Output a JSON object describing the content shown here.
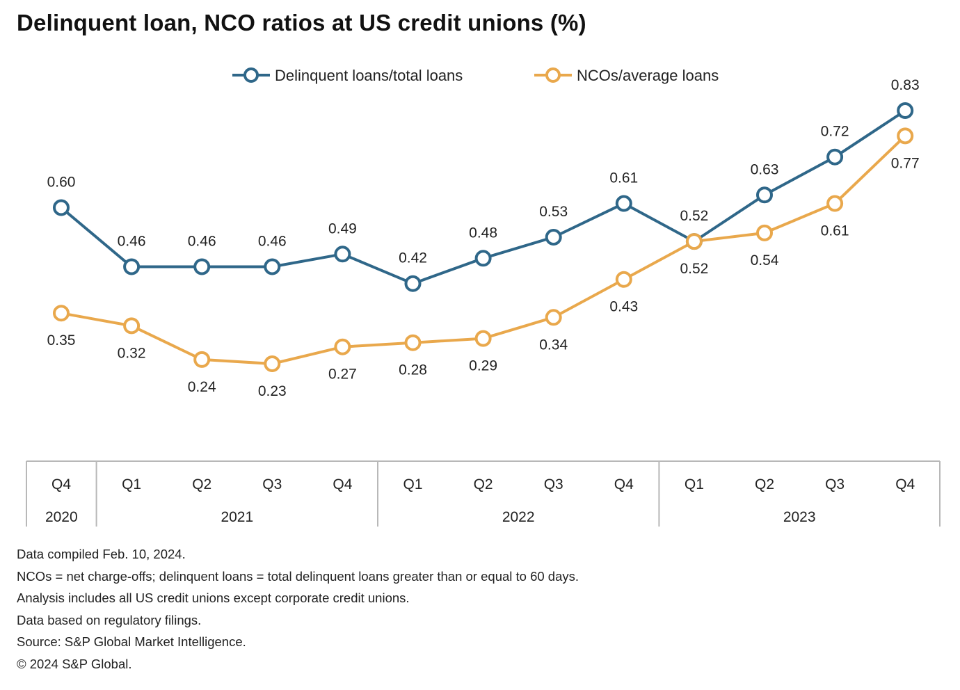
{
  "title": "Delinquent loan, NCO ratios at US credit unions (%)",
  "colors": {
    "delinquent": "#2f6789",
    "nco": "#e9a84c",
    "axis": "#b8b8b8",
    "text": "#222222"
  },
  "chart_data": {
    "type": "line",
    "title": "Delinquent loan, NCO ratios at US credit unions (%)",
    "xlabel": "",
    "ylabel": "",
    "grid": false,
    "legend_position": "top",
    "categories": [
      "Q4",
      "Q1",
      "Q2",
      "Q3",
      "Q4",
      "Q1",
      "Q2",
      "Q3",
      "Q4",
      "Q1",
      "Q2",
      "Q3",
      "Q4"
    ],
    "year_groups": [
      {
        "label": "2020",
        "count": 1
      },
      {
        "label": "2021",
        "count": 4
      },
      {
        "label": "2022",
        "count": 4
      },
      {
        "label": "2023",
        "count": 4
      }
    ],
    "series": [
      {
        "name": "Delinquent loans/total loans",
        "color": "#2f6789",
        "values": [
          0.6,
          0.46,
          0.46,
          0.46,
          0.49,
          0.42,
          0.48,
          0.53,
          0.61,
          0.52,
          0.63,
          0.72,
          0.83
        ],
        "labels": [
          "0.60",
          "0.46",
          "0.46",
          "0.46",
          "0.49",
          "0.42",
          "0.48",
          "0.53",
          "0.61",
          "0.52",
          "0.63",
          "0.72",
          "0.83"
        ]
      },
      {
        "name": "NCOs/average loans",
        "color": "#e9a84c",
        "values": [
          0.35,
          0.32,
          0.24,
          0.23,
          0.27,
          0.28,
          0.29,
          0.34,
          0.43,
          0.52,
          0.54,
          0.61,
          0.77
        ],
        "labels": [
          "0.35",
          "0.32",
          "0.24",
          "0.23",
          "0.27",
          "0.28",
          "0.29",
          "0.34",
          "0.43",
          "0.52",
          "0.54",
          "0.61",
          "0.77"
        ]
      }
    ],
    "ylim": [
      0,
      1
    ]
  },
  "notes": [
    "Data compiled Feb. 10, 2024.",
    "NCOs = net charge-offs; delinquent loans = total delinquent loans greater than or equal to 60 days.",
    "Analysis includes all US credit unions except corporate credit unions.",
    "Data based on regulatory filings.",
    "Source: S&P Global Market Intelligence.",
    "© 2024 S&P Global."
  ]
}
